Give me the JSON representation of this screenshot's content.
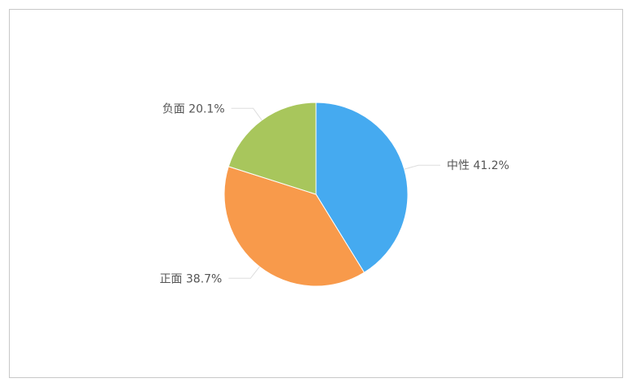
{
  "chart_data": {
    "type": "pie",
    "start": "top",
    "direction": "clockwise",
    "slices": [
      {
        "label": "中性",
        "value": 41.2,
        "text": "中性 41.2%",
        "color": "#45aaf0"
      },
      {
        "label": "正面",
        "value": 38.7,
        "text": "正面 38.7%",
        "color": "#f89a4b"
      },
      {
        "label": "负面",
        "value": 20.1,
        "text": "负面 20.1%",
        "color": "#a8c65c"
      }
    ]
  }
}
